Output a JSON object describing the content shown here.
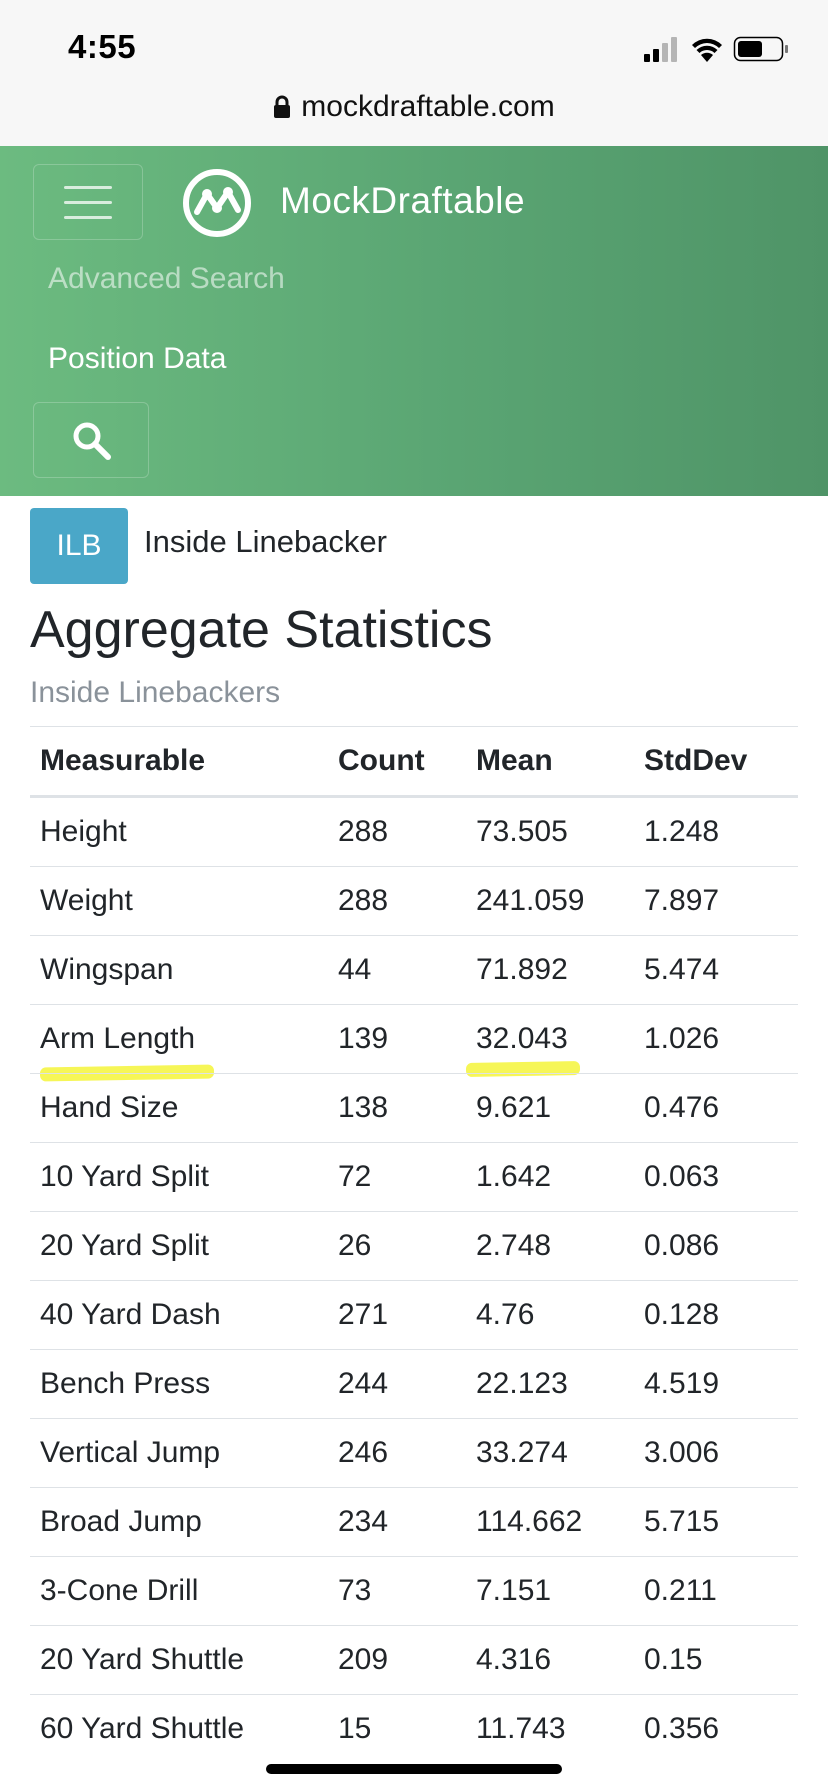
{
  "status_bar": {
    "time": "4:55",
    "icons": [
      "signal-icon",
      "wifi-icon",
      "battery-icon"
    ]
  },
  "browser": {
    "url": "mockdraftable.com"
  },
  "navbar": {
    "brand_name": "MockDraftable",
    "links": [
      "Advanced Search",
      "Position Data"
    ],
    "colors": {
      "start": "#6cbb80",
      "end": "#4f9467"
    }
  },
  "position": {
    "badge": "ILB",
    "name": "Inside Linebacker",
    "badge_color": "#4aa7c8"
  },
  "page": {
    "title": "Aggregate Statistics",
    "subtitle": "Inside Linebackers"
  },
  "table": {
    "headers": [
      "Measurable",
      "Count",
      "Mean",
      "StdDev"
    ],
    "rows": [
      [
        "Height",
        "288",
        "73.505",
        "1.248"
      ],
      [
        "Weight",
        "288",
        "241.059",
        "7.897"
      ],
      [
        "Wingspan",
        "44",
        "71.892",
        "5.474"
      ],
      [
        "Arm Length",
        "139",
        "32.043",
        "1.026"
      ],
      [
        "Hand Size",
        "138",
        "9.621",
        "0.476"
      ],
      [
        "10 Yard Split",
        "72",
        "1.642",
        "0.063"
      ],
      [
        "20 Yard Split",
        "26",
        "2.748",
        "0.086"
      ],
      [
        "40 Yard Dash",
        "271",
        "4.76",
        "0.128"
      ],
      [
        "Bench Press",
        "244",
        "22.123",
        "4.519"
      ],
      [
        "Vertical Jump",
        "246",
        "33.274",
        "3.006"
      ],
      [
        "Broad Jump",
        "234",
        "114.662",
        "5.715"
      ],
      [
        "3-Cone Drill",
        "73",
        "7.151",
        "0.211"
      ],
      [
        "20 Yard Shuttle",
        "209",
        "4.316",
        "0.15"
      ],
      [
        "60 Yard Shuttle",
        "15",
        "11.743",
        "0.356"
      ]
    ]
  }
}
